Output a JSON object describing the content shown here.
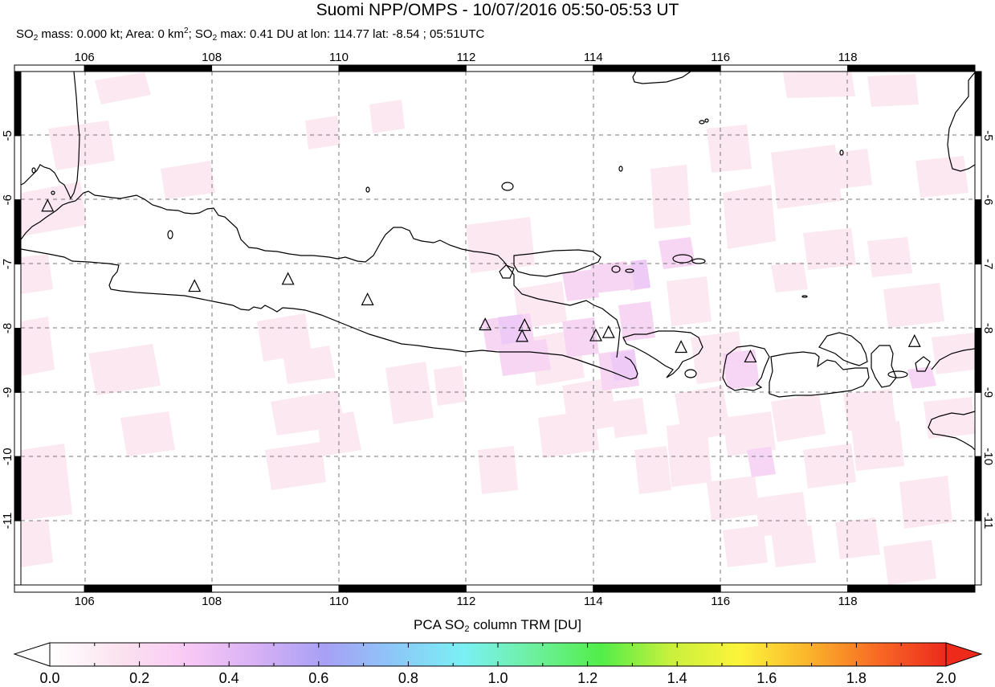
{
  "header": {
    "title": "Suomi NPP/OMPS - 10/07/2016 05:50-05:53 UT",
    "subtitle_parts": {
      "so2_label_a": "SO",
      "sub2": "2",
      "mass_text": " mass: 0.000 kt; Area: 0 km",
      "sup2": "2",
      "sep": "; ",
      "so2_label_b": "SO",
      "sub2b": "2",
      "max_text": " max: 0.41 DU at lon: 114.77 lat: -8.54 ; 05:51UTC"
    }
  },
  "map": {
    "lon_range": [
      105,
      120
    ],
    "lat_range": [
      -12,
      -4
    ],
    "lon_ticks": [
      "106",
      "108",
      "110",
      "112",
      "114",
      "116",
      "118"
    ],
    "lat_ticks": [
      "-5",
      "-6",
      "-7",
      "-8",
      "-9",
      "-10",
      "-11"
    ],
    "volcano_marker": "triangle-icon",
    "volcanoes": [
      {
        "lon": 105.42,
        "lat": -6.1
      },
      {
        "lon": 107.73,
        "lat": -7.35
      },
      {
        "lon": 109.2,
        "lat": -7.24
      },
      {
        "lon": 110.45,
        "lat": -7.56
      },
      {
        "lon": 112.3,
        "lat": -7.95
      },
      {
        "lon": 112.92,
        "lat": -7.96
      },
      {
        "lon": 112.88,
        "lat": -8.13
      },
      {
        "lon": 114.04,
        "lat": -8.12
      },
      {
        "lon": 114.24,
        "lat": -8.07
      },
      {
        "lon": 115.38,
        "lat": -8.3
      },
      {
        "lon": 116.47,
        "lat": -8.45
      },
      {
        "lon": 119.05,
        "lat": -8.21
      }
    ],
    "so2_max": {
      "value_du": 0.41,
      "lon": 114.77,
      "lat": -8.54,
      "time": "05:51UTC"
    }
  },
  "colorbar": {
    "label_pre": "PCA SO",
    "label_sub": "2",
    "label_post": " column TRM [DU]",
    "min": 0.0,
    "max": 2.0,
    "ticks": [
      "0.0",
      "0.2",
      "0.4",
      "0.6",
      "0.8",
      "1.0",
      "1.2",
      "1.4",
      "1.6",
      "1.8",
      "2.0"
    ],
    "colors": [
      "#ffffff",
      "#fbe3ef",
      "#f9c9f5",
      "#d7b1f5",
      "#a7a0f5",
      "#8cc8f8",
      "#7af0f4",
      "#6ef0a0",
      "#52ee48",
      "#c8f03c",
      "#fcf43a",
      "#fbb42c",
      "#f86a24",
      "#ec2a1e"
    ],
    "under_color": "#ffffff",
    "over_color": "#ee2a1a"
  }
}
